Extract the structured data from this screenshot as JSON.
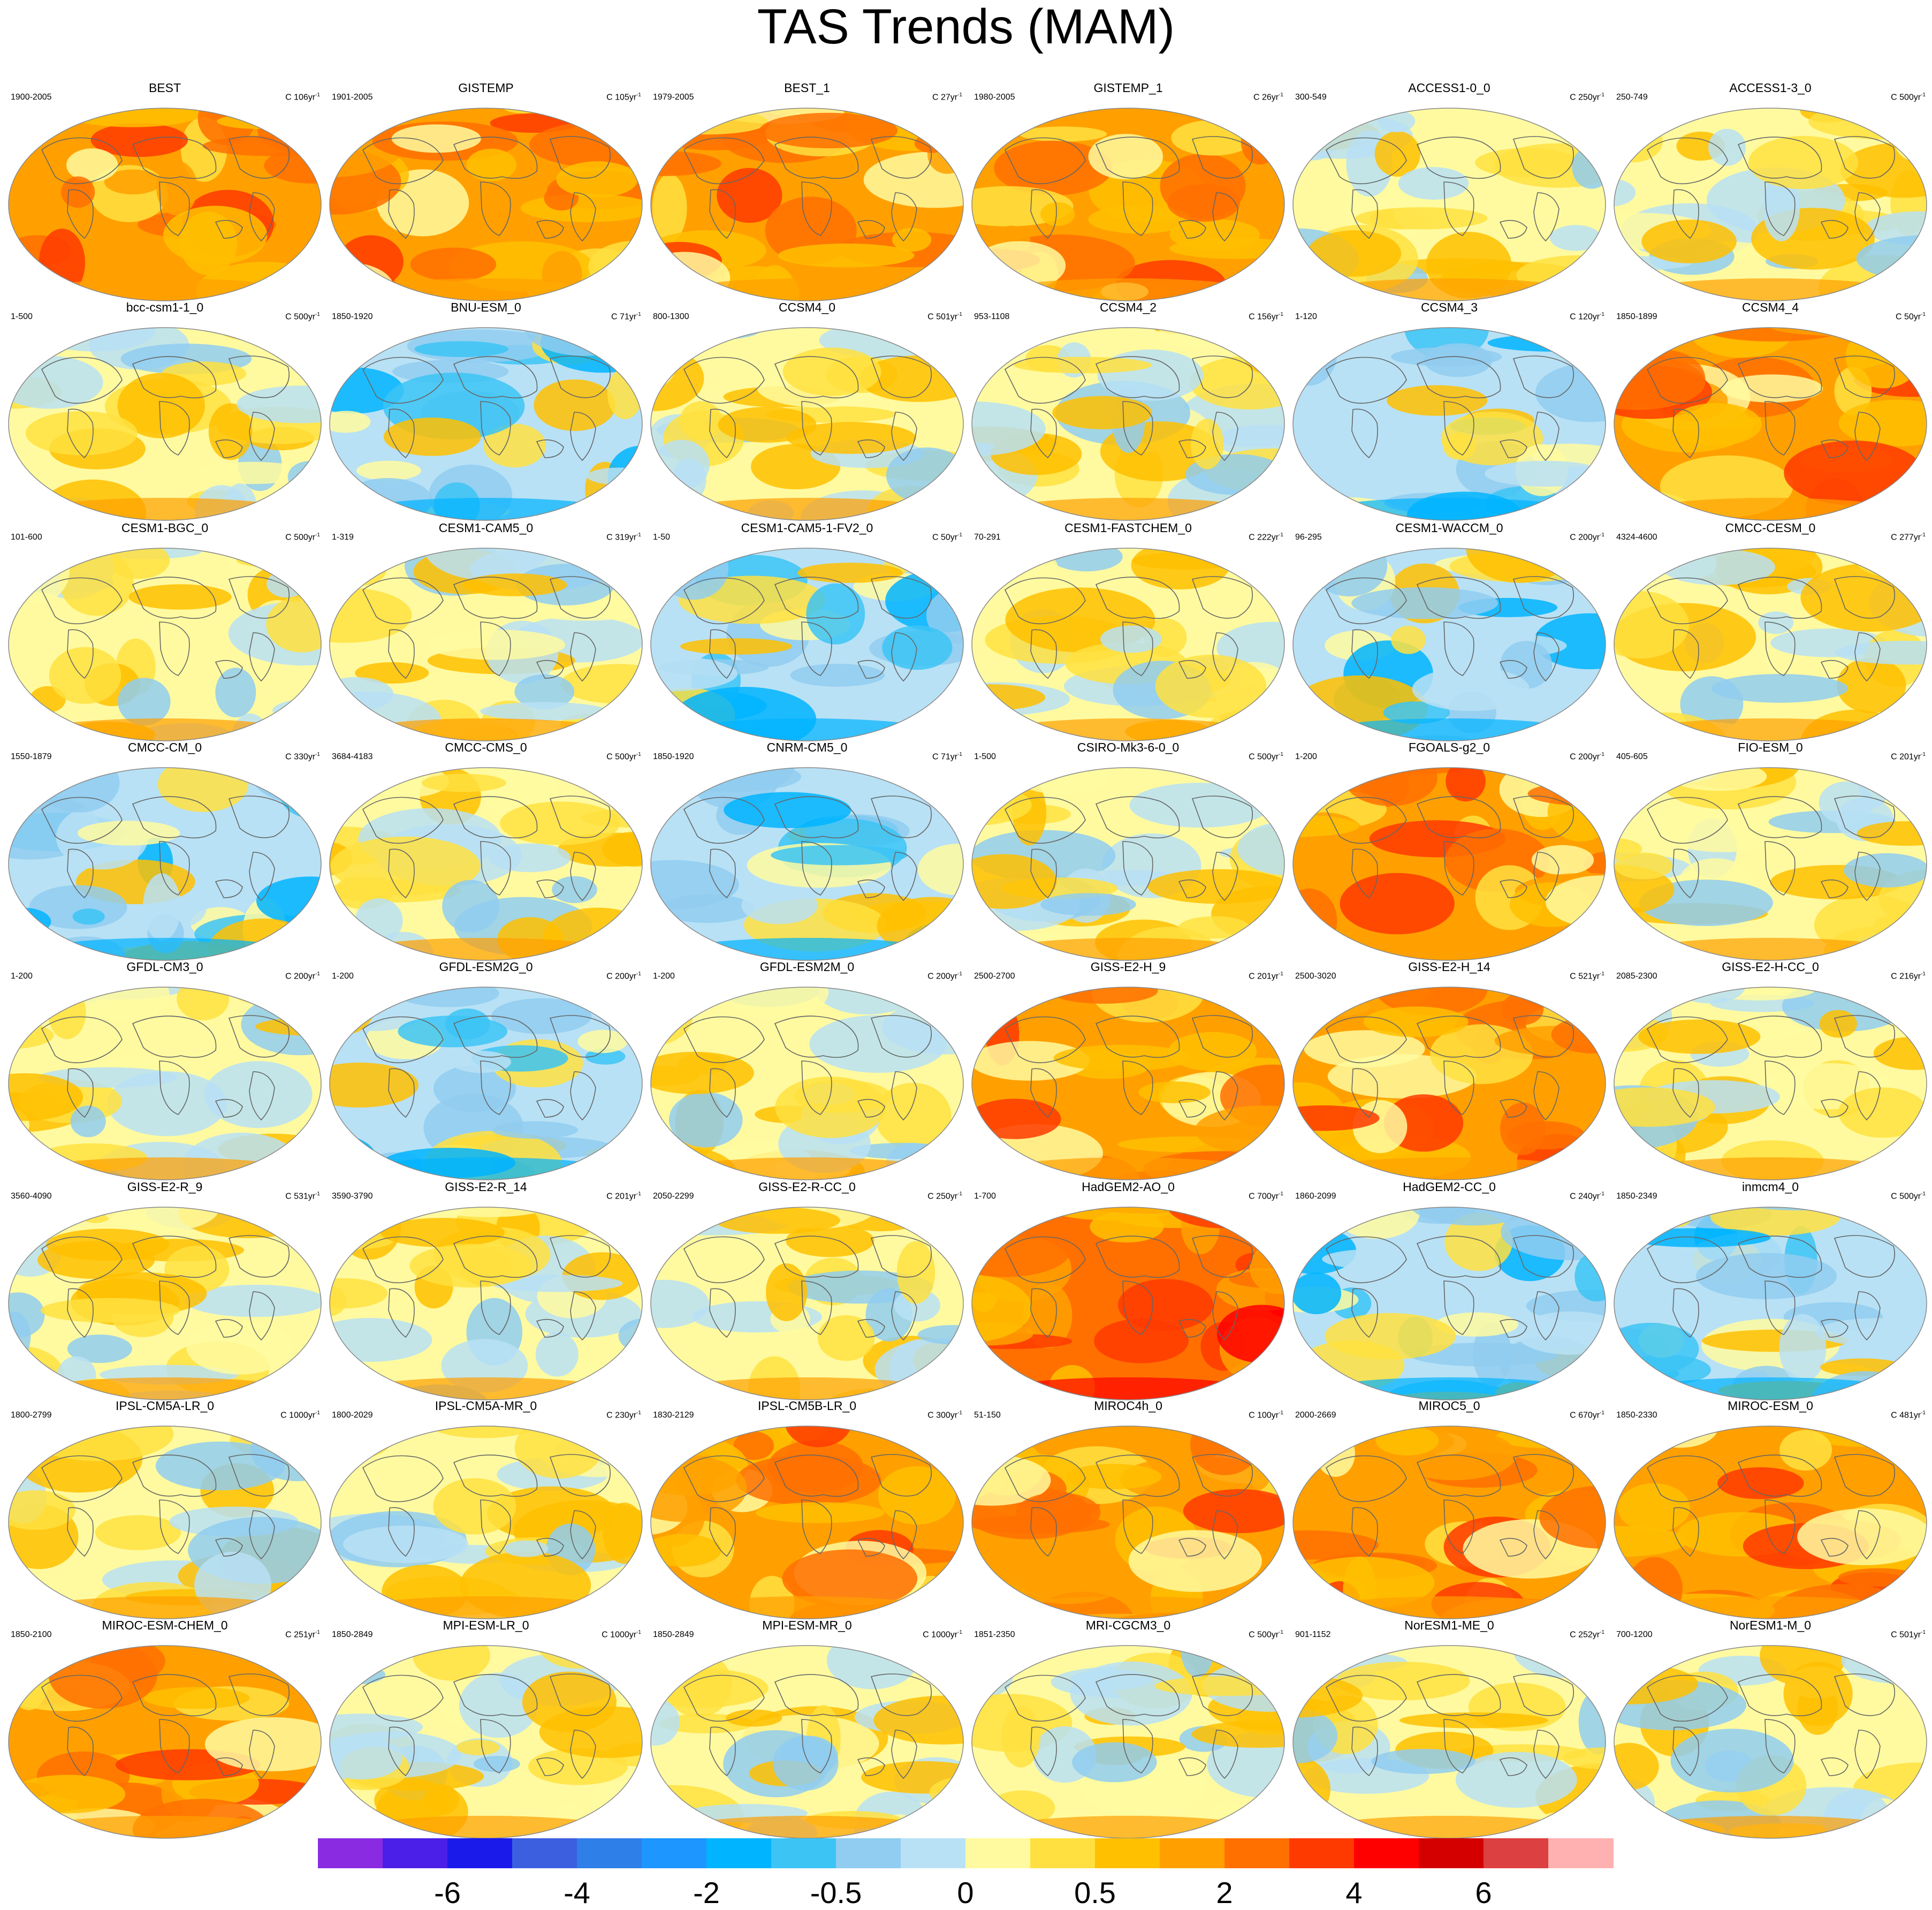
{
  "title": "TAS Trends (MAM)",
  "chart_data": {
    "type": "heatmap",
    "title": "TAS Trends (MAM)",
    "projection": "robinson world maps",
    "colors": {
      "coastline": "#666666",
      "scale": [
        "#8a2be2",
        "#4b1fe8",
        "#1a1aeb",
        "#3c5fe0",
        "#2f7fe8",
        "#1e96ff",
        "#00b4ff",
        "#3cc4f5",
        "#90cdf0",
        "#b8e1f5",
        "#fffaa0",
        "#ffe040",
        "#ffc000",
        "#ffa000",
        "#ff7000",
        "#ff3a00",
        "#ff0000",
        "#d40000",
        "#dc4040",
        "#ffb0b0"
      ]
    },
    "legend": {
      "position": "bottom",
      "tick_labels": [
        "-6",
        "-4",
        "-2",
        "-0.5",
        "0",
        "0.5",
        "2",
        "4",
        "6"
      ],
      "tick_boundary_index": [
        2,
        4,
        6,
        8,
        10,
        12,
        14,
        16,
        18
      ]
    },
    "panels": [
      {
        "name": "BEST",
        "years": "1900-2005",
        "c": "C 106yr",
        "style": "warm"
      },
      {
        "name": "GISTEMP",
        "years": "1901-2005",
        "c": "C 105yr",
        "style": "warm"
      },
      {
        "name": "BEST_1",
        "years": "1979-2005",
        "c": "C 27yr",
        "style": "warm"
      },
      {
        "name": "GISTEMP_1",
        "years": "1980-2005",
        "c": "C 26yr",
        "style": "warm"
      },
      {
        "name": "ACCESS1-0_0",
        "years": "300-549",
        "c": "C 250yr",
        "style": "mixed"
      },
      {
        "name": "ACCESS1-3_0",
        "years": "250-749",
        "c": "C 500yr",
        "style": "mixed"
      },
      {
        "name": "bcc-csm1-1_0",
        "years": "1-500",
        "c": "C 500yr",
        "style": "mixed"
      },
      {
        "name": "BNU-ESM_0",
        "years": "1850-1920",
        "c": "C 71yr",
        "style": "cool"
      },
      {
        "name": "CCSM4_0",
        "years": "800-1300",
        "c": "C 501yr",
        "style": "mixed"
      },
      {
        "name": "CCSM4_2",
        "years": "953-1108",
        "c": "C 156yr",
        "style": "mixed"
      },
      {
        "name": "CCSM4_3",
        "years": "1-120",
        "c": "C 120yr",
        "style": "cool"
      },
      {
        "name": "CCSM4_4",
        "years": "1850-1899",
        "c": "C 50yr",
        "style": "warm"
      },
      {
        "name": "CESM1-BGC_0",
        "years": "101-600",
        "c": "C 500yr",
        "style": "mixed"
      },
      {
        "name": "CESM1-CAM5_0",
        "years": "1-319",
        "c": "C 319yr",
        "style": "mixed"
      },
      {
        "name": "CESM1-CAM5-1-FV2_0",
        "years": "1-50",
        "c": "C 50yr",
        "style": "cool"
      },
      {
        "name": "CESM1-FASTCHEM_0",
        "years": "70-291",
        "c": "C 222yr",
        "style": "mixed"
      },
      {
        "name": "CESM1-WACCM_0",
        "years": "96-295",
        "c": "C 200yr",
        "style": "cool"
      },
      {
        "name": "CMCC-CESM_0",
        "years": "4324-4600",
        "c": "C 277yr",
        "style": "mixed"
      },
      {
        "name": "CMCC-CM_0",
        "years": "1550-1879",
        "c": "C 330yr",
        "style": "cool"
      },
      {
        "name": "CMCC-CMS_0",
        "years": "3684-4183",
        "c": "C 500yr",
        "style": "mixed"
      },
      {
        "name": "CNRM-CM5_0",
        "years": "1850-1920",
        "c": "C 71yr",
        "style": "cool"
      },
      {
        "name": "CSIRO-Mk3-6-0_0",
        "years": "1-500",
        "c": "C 500yr",
        "style": "mixed"
      },
      {
        "name": "FGOALS-g2_0",
        "years": "1-200",
        "c": "C 200yr",
        "style": "warm"
      },
      {
        "name": "FIO-ESM_0",
        "years": "405-605",
        "c": "C 201yr",
        "style": "mixed"
      },
      {
        "name": "GFDL-CM3_0",
        "years": "1-200",
        "c": "C 200yr",
        "style": "mixed"
      },
      {
        "name": "GFDL-ESM2G_0",
        "years": "1-200",
        "c": "C 200yr",
        "style": "cool"
      },
      {
        "name": "GFDL-ESM2M_0",
        "years": "1-200",
        "c": "C 200yr",
        "style": "mixed"
      },
      {
        "name": "GISS-E2-H_9",
        "years": "2500-2700",
        "c": "C 201yr",
        "style": "warm"
      },
      {
        "name": "GISS-E2-H_14",
        "years": "2500-3020",
        "c": "C 521yr",
        "style": "warm"
      },
      {
        "name": "GISS-E2-H-CC_0",
        "years": "2085-2300",
        "c": "C 216yr",
        "style": "mixed"
      },
      {
        "name": "GISS-E2-R_9",
        "years": "3560-4090",
        "c": "C 531yr",
        "style": "mixed"
      },
      {
        "name": "GISS-E2-R_14",
        "years": "3590-3790",
        "c": "C 201yr",
        "style": "mixed"
      },
      {
        "name": "GISS-E2-R-CC_0",
        "years": "2050-2299",
        "c": "C 250yr",
        "style": "mixed"
      },
      {
        "name": "HadGEM2-AO_0",
        "years": "1-700",
        "c": "C 700yr",
        "style": "hot"
      },
      {
        "name": "HadGEM2-CC_0",
        "years": "1860-2099",
        "c": "C 240yr",
        "style": "cool"
      },
      {
        "name": "inmcm4_0",
        "years": "1850-2349",
        "c": "C 500yr",
        "style": "cool"
      },
      {
        "name": "IPSL-CM5A-LR_0",
        "years": "1800-2799",
        "c": "C 1000yr",
        "style": "mixed"
      },
      {
        "name": "IPSL-CM5A-MR_0",
        "years": "1800-2029",
        "c": "C 230yr",
        "style": "mixed"
      },
      {
        "name": "IPSL-CM5B-LR_0",
        "years": "1830-2129",
        "c": "C 300yr",
        "style": "warm"
      },
      {
        "name": "MIROC4h_0",
        "years": "51-150",
        "c": "C 100yr",
        "style": "warm"
      },
      {
        "name": "MIROC5_0",
        "years": "2000-2669",
        "c": "C 670yr",
        "style": "warm"
      },
      {
        "name": "MIROC-ESM_0",
        "years": "1850-2330",
        "c": "C 481yr",
        "style": "warm"
      },
      {
        "name": "MIROC-ESM-CHEM_0",
        "years": "1850-2100",
        "c": "C 251yr",
        "style": "warm"
      },
      {
        "name": "MPI-ESM-LR_0",
        "years": "1850-2849",
        "c": "C 1000yr",
        "style": "mixed"
      },
      {
        "name": "MPI-ESM-MR_0",
        "years": "1850-2849",
        "c": "C 1000yr",
        "style": "mixed"
      },
      {
        "name": "MRI-CGCM3_0",
        "years": "1851-2350",
        "c": "C 500yr",
        "style": "mixed"
      },
      {
        "name": "NorESM1-ME_0",
        "years": "901-1152",
        "c": "C 252yr",
        "style": "mixed"
      },
      {
        "name": "NorESM1-M_0",
        "years": "700-1200",
        "c": "C 501yr",
        "style": "mixed"
      }
    ]
  }
}
